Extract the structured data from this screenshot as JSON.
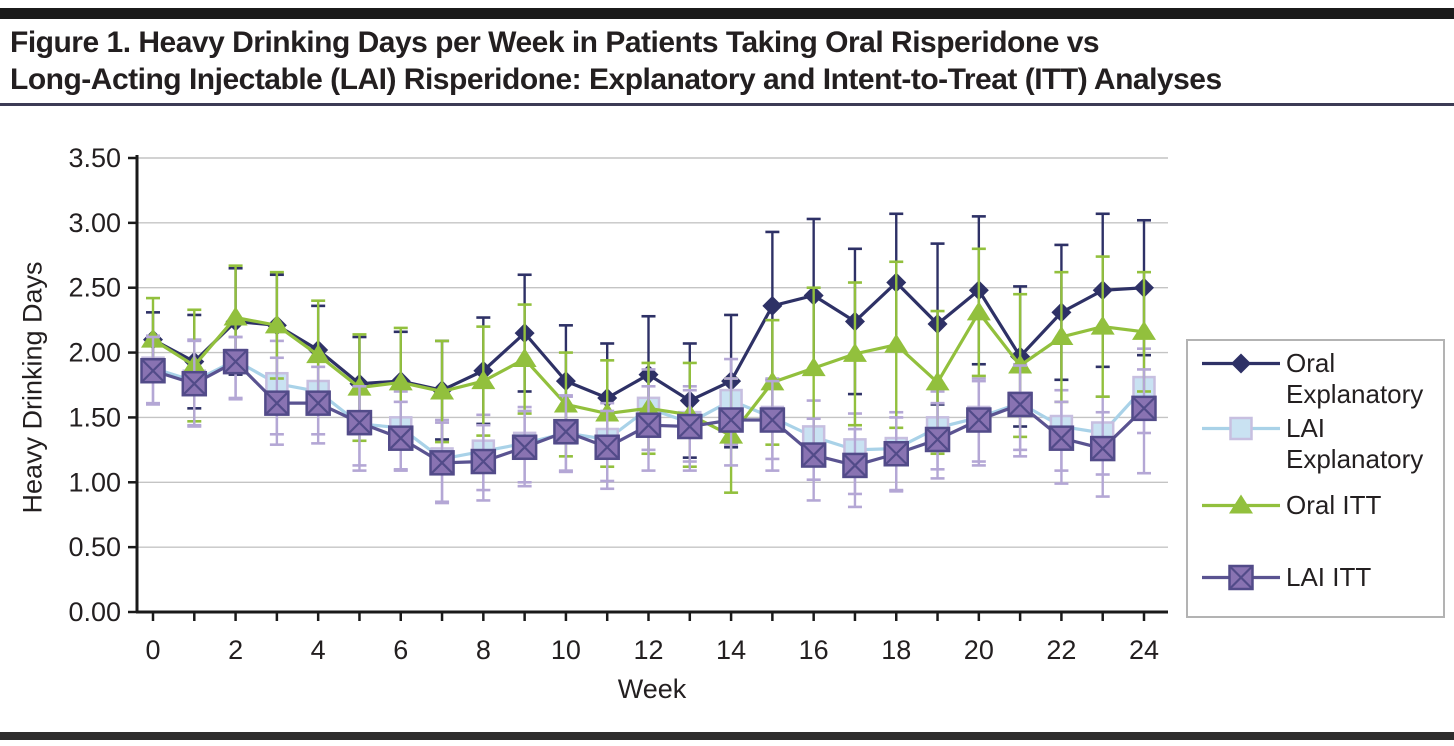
{
  "header": {
    "title_line1": "Figure 1. Heavy Drinking Days per Week in Patients Taking Oral Risperidone vs",
    "title_line2": "Long-Acting Injectable (LAI) Risperidone: Explanatory and Intent-to-Treat (ITT) Analyses"
  },
  "chart_data": {
    "type": "line",
    "xlabel": "Week",
    "ylabel": "Heavy Drinking Days",
    "x_max": 24,
    "x_label_step": 2,
    "ylim": [
      0,
      3.5
    ],
    "y_tick_step": 0.5,
    "y_tick_labels": [
      "0.00",
      "0.50",
      "1.00",
      "1.50",
      "2.00",
      "2.50",
      "3.00",
      "3.50"
    ],
    "grid": true,
    "legend_position": "right",
    "colors": {
      "navy": "#2e3166",
      "green": "#92c03d",
      "blue_line": "#a9d2e8",
      "blue_fill": "#c9e2f2",
      "blue_stroke": "#c7bfe0",
      "purple_line": "#5a5391",
      "purple_fill": "#8973b2",
      "purple_stroke": "#524b89",
      "lavender_err": "#b4a7d5",
      "gridline": "#c4c4c4",
      "axis": "#1a1a1a"
    },
    "series": [
      {
        "name": "Oral Explanatory",
        "marker": "diamond",
        "line_color": "#2e3166",
        "err_color": "#2e3166",
        "values": [
          2.1,
          1.93,
          2.24,
          2.21,
          2.02,
          1.76,
          1.78,
          1.71,
          1.86,
          2.15,
          1.78,
          1.65,
          1.83,
          1.63,
          1.78,
          2.36,
          2.44,
          2.24,
          2.54,
          2.22,
          2.48,
          1.97,
          2.31,
          2.48,
          2.5
        ],
        "err_up": [
          0.21,
          0.36,
          0.41,
          0.39,
          0.34,
          0.36,
          0.38,
          0.38,
          0.41,
          0.45,
          0.43,
          0.42,
          0.45,
          0.44,
          0.51,
          0.57,
          0.59,
          0.56,
          0.53,
          0.62,
          0.57,
          0.54,
          0.52,
          0.59,
          0.52
        ],
        "err_down": [
          0.21,
          0.36,
          0.41,
          0.39,
          0.34,
          0.36,
          0.38,
          0.38,
          0.41,
          0.45,
          0.43,
          0.42,
          0.45,
          0.44,
          0.51,
          0.57,
          0.59,
          0.56,
          0.53,
          0.62,
          0.57,
          0.54,
          0.52,
          0.59,
          0.52
        ]
      },
      {
        "name": "LAI Explanatory",
        "marker": "square",
        "line_color": "#a9d2e8",
        "err_color": "#b4a7d5",
        "values": [
          1.88,
          1.78,
          1.94,
          1.76,
          1.7,
          1.45,
          1.42,
          1.18,
          1.24,
          1.3,
          1.38,
          1.33,
          1.57,
          1.46,
          1.63,
          1.5,
          1.35,
          1.25,
          1.26,
          1.42,
          1.5,
          1.61,
          1.43,
          1.38,
          1.73
        ],
        "err_up": [
          0.25,
          0.32,
          0.18,
          0.33,
          0.27,
          0.28,
          0.28,
          0.3,
          0.28,
          0.28,
          0.28,
          0.28,
          0.3,
          0.28,
          0.32,
          0.3,
          0.28,
          0.28,
          0.28,
          0.28,
          0.3,
          0.3,
          0.28,
          0.28,
          0.3
        ],
        "err_down": [
          0.27,
          0.34,
          0.29,
          0.39,
          0.33,
          0.32,
          0.32,
          0.33,
          0.3,
          0.3,
          0.3,
          0.32,
          0.32,
          0.3,
          0.34,
          0.32,
          0.33,
          0.34,
          0.32,
          0.32,
          0.34,
          0.36,
          0.34,
          0.32,
          0.35
        ]
      },
      {
        "name": "Oral ITT",
        "marker": "triangle",
        "line_color": "#92c03d",
        "err_color": "#92c03d",
        "values": [
          2.1,
          1.9,
          2.27,
          2.21,
          1.98,
          1.73,
          1.77,
          1.7,
          1.78,
          1.95,
          1.6,
          1.53,
          1.57,
          1.52,
          1.36,
          1.77,
          1.88,
          1.99,
          2.06,
          1.77,
          2.31,
          1.9,
          2.12,
          2.2,
          2.16
        ],
        "err_up": [
          0.32,
          0.43,
          0.4,
          0.41,
          0.42,
          0.41,
          0.42,
          0.39,
          0.42,
          0.42,
          0.4,
          0.41,
          0.35,
          0.4,
          0.44,
          0.48,
          0.62,
          0.55,
          0.64,
          0.55,
          0.49,
          0.55,
          0.5,
          0.54,
          0.46
        ],
        "err_down": [
          0.32,
          0.43,
          0.4,
          0.41,
          0.42,
          0.41,
          0.42,
          0.39,
          0.42,
          0.42,
          0.4,
          0.41,
          0.35,
          0.4,
          0.44,
          0.48,
          0.62,
          0.55,
          0.64,
          0.55,
          0.49,
          0.55,
          0.5,
          0.54,
          0.46
        ]
      },
      {
        "name": "LAI ITT",
        "marker": "square-x",
        "line_color": "#5a5391",
        "err_color": "#b4a7d5",
        "values": [
          1.86,
          1.76,
          1.93,
          1.61,
          1.61,
          1.46,
          1.34,
          1.15,
          1.16,
          1.27,
          1.39,
          1.27,
          1.44,
          1.43,
          1.48,
          1.48,
          1.21,
          1.13,
          1.22,
          1.33,
          1.48,
          1.6,
          1.34,
          1.26,
          1.57
        ],
        "err_up": [
          0.26,
          0.33,
          0.19,
          0.35,
          0.28,
          0.28,
          0.28,
          0.31,
          0.28,
          0.28,
          0.28,
          0.28,
          0.3,
          0.28,
          0.32,
          0.3,
          0.28,
          0.28,
          0.28,
          0.28,
          0.3,
          0.3,
          0.28,
          0.28,
          0.3
        ],
        "err_down": [
          0.26,
          0.33,
          0.29,
          0.32,
          0.31,
          0.37,
          0.25,
          0.31,
          0.3,
          0.3,
          0.3,
          0.32,
          0.35,
          0.34,
          0.35,
          0.39,
          0.35,
          0.32,
          0.29,
          0.3,
          0.35,
          0.4,
          0.35,
          0.37,
          0.5
        ]
      }
    ]
  }
}
